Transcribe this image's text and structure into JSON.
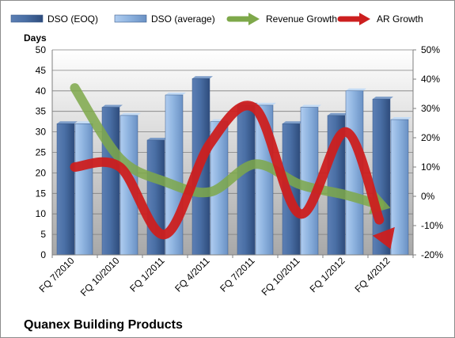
{
  "chart_data": {
    "type": "bar",
    "title": "Quanex Building Products",
    "ylabel": "Days",
    "categories": [
      "FQ 7/2010",
      "FQ 10/2010",
      "FQ 1/2011",
      "FQ 4/2011",
      "FQ 7/2011",
      "FQ 10/2011",
      "FQ 1/2012",
      "FQ 4/2012"
    ],
    "series": [
      {
        "name": "DSO (EOQ)",
        "type": "bar",
        "axis": "left",
        "color": "#4a6fa5",
        "values": [
          32,
          36,
          28,
          43,
          36.5,
          32,
          34,
          38
        ]
      },
      {
        "name": "DSO (average)",
        "type": "bar",
        "axis": "left",
        "color": "#8fb4e0",
        "values": [
          32,
          34,
          39,
          32.5,
          36.5,
          36,
          40,
          33
        ]
      },
      {
        "name": "Revenue Growth",
        "type": "line",
        "axis": "right",
        "unit": "%",
        "color": "#7ea84a",
        "values": [
          37,
          13,
          5,
          1.5,
          11,
          4,
          0.5,
          -4
        ]
      },
      {
        "name": "AR Growth",
        "type": "line",
        "axis": "right",
        "unit": "%",
        "color": "#cc1f1f",
        "values": [
          10,
          10,
          -13,
          18,
          30,
          -6,
          22,
          -18
        ]
      }
    ],
    "ylim": [
      0,
      50
    ],
    "yticks": [
      "0",
      "5",
      "10",
      "15",
      "20",
      "25",
      "30",
      "35",
      "40",
      "45",
      "50"
    ],
    "y2lim": [
      -20,
      50
    ],
    "y2ticks": [
      "-20%",
      "-10%",
      "0%",
      "10%",
      "20%",
      "30%",
      "40%",
      "50%"
    ],
    "grid": true,
    "legend": "top"
  }
}
